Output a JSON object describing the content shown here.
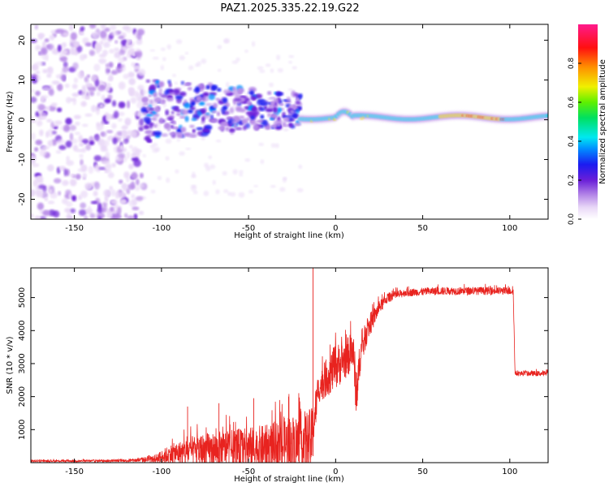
{
  "title": "PAZ1.2025.335.22.19.G22",
  "colors": {
    "snr_line": "#e8231f",
    "spectrogram_low": "#7b2fd6",
    "spectrogram_mid": "#00d8ff",
    "spectrogram_high": "#ff2a2a"
  },
  "chart_data": [
    {
      "type": "heatmap",
      "title": "PAZ1.2025.335.22.19.G22",
      "xlabel": "Height of straight line (km)",
      "ylabel": "Frequency (Hz)",
      "xlim": [
        -175,
        122
      ],
      "ylim": [
        -25,
        24
      ],
      "xticks": [
        -150,
        -100,
        -50,
        0,
        50,
        100
      ],
      "yticks": [
        -20,
        -10,
        0,
        10,
        20
      ],
      "colorbar": {
        "label": "Normalized spectral amplitude",
        "range": [
          0.0,
          1.0
        ],
        "ticks": [
          "0.0",
          "0.2",
          "0.4",
          "0.6",
          "0.8"
        ],
        "colormap": "rainbow (white-violet-blue-cyan-green-yellow-red-magenta)"
      },
      "features": [
        {
          "region": "noise",
          "x_range": [
            -175,
            -110
          ],
          "freq_range": [
            -25,
            24
          ],
          "amplitude": "0.0-0.3"
        },
        {
          "region": "transition",
          "x_range": [
            -110,
            -20
          ],
          "freq_range": [
            -5,
            12
          ],
          "amplitude": "0.1-0.4"
        },
        {
          "region": "signal",
          "x_range": [
            -20,
            122
          ],
          "center_freq": 0.5,
          "bandwidth_hz": 2,
          "amplitude": "0.4-1.0"
        }
      ]
    },
    {
      "type": "line",
      "xlabel": "Height of straight line (km)",
      "ylabel": "SNR (10 * v/v)",
      "xlim": [
        -175,
        122
      ],
      "ylim": [
        0,
        5900
      ],
      "xticks": [
        -150,
        -100,
        -50,
        0,
        50,
        100
      ],
      "yticks": [
        1000,
        2000,
        3000,
        4000,
        5000
      ],
      "series": [
        {
          "name": "SNR",
          "x": [
            -175,
            -150,
            -120,
            -105,
            -95,
            -80,
            -60,
            -40,
            -25,
            -14,
            -10,
            -5,
            0,
            5,
            10,
            12,
            14,
            18,
            25,
            30,
            40,
            60,
            80,
            95,
            102,
            103,
            110,
            122
          ],
          "mean": [
            50,
            50,
            60,
            100,
            250,
            350,
            400,
            450,
            550,
            650,
            2200,
            2600,
            2900,
            3100,
            3400,
            2000,
            3200,
            4000,
            4700,
            5000,
            5150,
            5200,
            5200,
            5200,
            5200,
            2700,
            2700,
            2700
          ],
          "spread": [
            30,
            30,
            40,
            100,
            300,
            500,
            600,
            700,
            900,
            1000,
            400,
            600,
            700,
            600,
            600,
            800,
            500,
            400,
            200,
            150,
            120,
            120,
            120,
            120,
            120,
            80,
            80,
            80
          ],
          "spikes": [
            {
              "x": -13,
              "y": 5900
            },
            {
              "x": -85,
              "y": 1700
            },
            {
              "x": -67,
              "y": 1800
            },
            {
              "x": -47,
              "y": 1950
            },
            {
              "x": -27,
              "y": 2000
            }
          ]
        }
      ]
    }
  ]
}
